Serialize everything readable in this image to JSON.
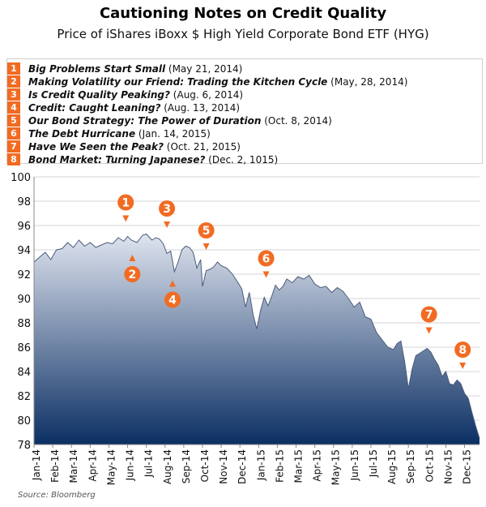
{
  "title": "Cautioning Notes on Credit Quality",
  "subtitle": "Price of iShares iBoxx $ High Yield Corporate Bond ETF (HYG)",
  "notes": [
    {
      "num": "1",
      "title": "Big Problems Start Small",
      "date": "(May 21, 2014)"
    },
    {
      "num": "2",
      "title": "Making Volatility our Friend: Trading the Kitchen Cycle",
      "date": "(May, 28, 2014)"
    },
    {
      "num": "3",
      "title": "Is Credit Quality Peaking?",
      "date": "(Aug. 6, 2014)"
    },
    {
      "num": "4",
      "title": "Credit: Caught Leaning?",
      "date": "(Aug. 13, 2014)"
    },
    {
      "num": "5",
      "title": "Our Bond Strategy: The Power of Duration",
      "date": "(Oct. 8, 2014)"
    },
    {
      "num": "6",
      "title": "The Debt Hurricane",
      "date": "(Jan. 14, 2015)"
    },
    {
      "num": "7",
      "title": "Have We Seen the Peak?",
      "date": "(Oct. 21, 2015)"
    },
    {
      "num": "8",
      "title": "Bond Market: Turning Japanese?",
      "date": "(Dec. 2, 1015)"
    }
  ],
  "source": "Source: Bloomberg",
  "colors": {
    "accent": "#f26b22",
    "area_top": "#dfe4ef",
    "area_bottom": "#0b2f63",
    "line": "#4a5b7a"
  },
  "chart_data": {
    "type": "area",
    "ylim": [
      78,
      100
    ],
    "yticks": [
      78,
      80,
      82,
      84,
      86,
      88,
      90,
      92,
      94,
      96,
      98,
      100
    ],
    "xlim": [
      0,
      23.8
    ],
    "grid": true,
    "xtick_labels": [
      "Jan-14",
      "Feb-14",
      "Mar-14",
      "Apr-14",
      "May-14",
      "Jun-14",
      "Jul-14",
      "Aug-14",
      "Sep-14",
      "Oct-14",
      "Nov-14",
      "Dec-14",
      "Jan-15",
      "Feb-15",
      "Mar-15",
      "Apr-15",
      "May-15",
      "Jun-15",
      "Jul-15",
      "Aug-15",
      "Sep-15",
      "Oct-15",
      "Nov-15",
      "Dec-15"
    ],
    "x": [
      0,
      0.3,
      0.6,
      0.9,
      1.2,
      1.5,
      1.8,
      2.1,
      2.4,
      2.7,
      3.0,
      3.3,
      3.6,
      3.9,
      4.2,
      4.5,
      4.8,
      5.0,
      5.2,
      5.5,
      5.8,
      6.0,
      6.3,
      6.5,
      6.7,
      6.9,
      7.1,
      7.3,
      7.5,
      7.7,
      7.9,
      8.1,
      8.3,
      8.5,
      8.7,
      8.9,
      9.0,
      9.2,
      9.4,
      9.6,
      9.8,
      10.0,
      10.3,
      10.6,
      10.9,
      11.1,
      11.3,
      11.5,
      11.7,
      11.9,
      12.1,
      12.3,
      12.5,
      12.7,
      12.9,
      13.1,
      13.3,
      13.5,
      13.8,
      14.1,
      14.4,
      14.7,
      15.0,
      15.3,
      15.6,
      15.9,
      16.2,
      16.5,
      16.8,
      17.1,
      17.4,
      17.7,
      18.0,
      18.3,
      18.6,
      18.9,
      19.2,
      19.4,
      19.6,
      19.8,
      20.0,
      20.2,
      20.4,
      20.6,
      20.8,
      21.0,
      21.2,
      21.4,
      21.6,
      21.8,
      22.0,
      22.2,
      22.4,
      22.6,
      22.8,
      23.0,
      23.2,
      23.4,
      23.6,
      23.8
    ],
    "y": [
      93.0,
      93.4,
      93.8,
      93.2,
      94.0,
      94.1,
      94.6,
      94.2,
      94.8,
      94.3,
      94.6,
      94.2,
      94.4,
      94.6,
      94.5,
      95.0,
      94.7,
      95.1,
      94.8,
      94.6,
      95.2,
      95.3,
      94.8,
      95.0,
      94.9,
      94.5,
      93.7,
      93.9,
      92.2,
      93.0,
      94.0,
      94.3,
      94.2,
      93.8,
      92.5,
      93.2,
      91.0,
      92.3,
      92.4,
      92.6,
      93.0,
      92.7,
      92.5,
      92.0,
      91.3,
      90.8,
      89.3,
      90.5,
      88.7,
      87.5,
      89.0,
      90.1,
      89.4,
      90.2,
      91.1,
      90.7,
      91.0,
      91.6,
      91.3,
      91.8,
      91.6,
      91.9,
      91.2,
      90.9,
      91.0,
      90.5,
      90.9,
      90.6,
      90.0,
      89.3,
      89.7,
      88.5,
      88.3,
      87.2,
      86.6,
      86.0,
      85.8,
      86.3,
      86.5,
      84.8,
      82.6,
      84.2,
      85.3,
      85.5,
      85.7,
      85.9,
      85.6,
      85.0,
      84.5,
      83.6,
      84.0,
      83.0,
      82.9,
      83.3,
      83.0,
      82.2,
      81.8,
      80.6,
      79.5,
      78.5
    ],
    "annotations": [
      {
        "label": "1",
        "x": 4.9,
        "y": 96.3,
        "direction": "down"
      },
      {
        "label": "2",
        "x": 5.25,
        "y": 93.6,
        "direction": "up"
      },
      {
        "label": "3",
        "x": 7.1,
        "y": 95.8,
        "direction": "down"
      },
      {
        "label": "4",
        "x": 7.4,
        "y": 91.5,
        "direction": "up"
      },
      {
        "label": "5",
        "x": 9.2,
        "y": 94.0,
        "direction": "down"
      },
      {
        "label": "6",
        "x": 12.4,
        "y": 91.7,
        "direction": "down"
      },
      {
        "label": "7",
        "x": 21.1,
        "y": 87.1,
        "direction": "down"
      },
      {
        "label": "8",
        "x": 22.9,
        "y": 84.2,
        "direction": "down"
      }
    ]
  }
}
